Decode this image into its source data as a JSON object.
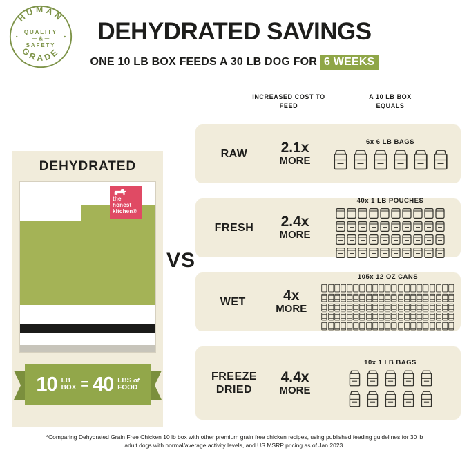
{
  "badge": {
    "top_text": "HUMAN",
    "bottom_text": "GRADE",
    "center_line1": "QUALITY",
    "center_amp": "&",
    "center_line2": "SAFETY"
  },
  "header": {
    "title": "DEHYDRATED SAVINGS",
    "subtitle_text": "ONE 10 LB BOX FEEDS A 30 LB DOG FOR",
    "subtitle_highlight": "6 WEEKS"
  },
  "left_panel": {
    "title": "DEHYDRATED",
    "logo": {
      "line1": "the",
      "line2": "honest",
      "line3": "kitchen®"
    },
    "ribbon": {
      "num1": "10",
      "unit1a": "LB",
      "unit1b": "BOX",
      "equals": "=",
      "num2": "40",
      "unit2a": "LBS",
      "of": "of",
      "unit2b": "FOOD"
    }
  },
  "vs_label": "VS",
  "comparison": {
    "header_cost": "INCREASED COST TO FEED",
    "header_equals": "A 10 LB BOX EQUALS",
    "rows": [
      {
        "label": "RAW",
        "cost_value": "2.1x",
        "cost_word": "MORE",
        "items_caption": "6x 6 LB BAGS",
        "icon": "bag",
        "count": 6,
        "per_row": 6
      },
      {
        "label": "FRESH",
        "cost_value": "2.4x",
        "cost_word": "MORE",
        "items_caption": "40x 1 LB POUCHES",
        "icon": "pouch",
        "count": 40,
        "per_row": 10
      },
      {
        "label": "WET",
        "cost_value": "4x",
        "cost_word": "MORE",
        "items_caption": "105x 12 OZ CANS",
        "icon": "can",
        "count": 105,
        "per_row": 21
      },
      {
        "label": "FREEZE DRIED",
        "cost_value": "4.4x",
        "cost_word": "MORE",
        "items_caption": "10x 1 LB BAGS",
        "icon": "bag",
        "count": 10,
        "per_row": 5
      }
    ]
  },
  "footnote": "*Comparing Dehydrated Grain Free Chicken 10 lb box with other premium grain free chicken recipes, using published feeding guidelines for 30 lb adult dogs with normal/average activity levels, and US MSRP pricing as of Jan 2023.",
  "colors": {
    "accent_green": "#8fa647",
    "box_green": "#a4b356",
    "ribbon_green": "#92a74a",
    "badge_green": "#7d9348",
    "brand_pink": "#e04a64",
    "card_beige": "#f1ecdb",
    "ink": "#1d1d1b"
  },
  "chart_data": {
    "type": "table",
    "title": "DEHYDRATED SAVINGS",
    "subtitle": "ONE 10 LB BOX FEEDS A 30 LB DOG FOR 6 WEEKS",
    "baseline": "DEHYDRATED: 10 LB BOX = 40 LBS OF FOOD",
    "categories": [
      "RAW",
      "FRESH",
      "WET",
      "FREEZE DRIED"
    ],
    "series": [
      {
        "name": "INCREASED COST TO FEED (multiplier)",
        "values": [
          2.1,
          2.4,
          4,
          4.4
        ]
      },
      {
        "name": "A 10 LB BOX EQUALS",
        "values": [
          "6x 6 LB BAGS",
          "40x 1 LB POUCHES",
          "105x 12 OZ CANS",
          "10x 1 LB BAGS"
        ]
      }
    ],
    "legend_position": "none",
    "grid": false
  }
}
